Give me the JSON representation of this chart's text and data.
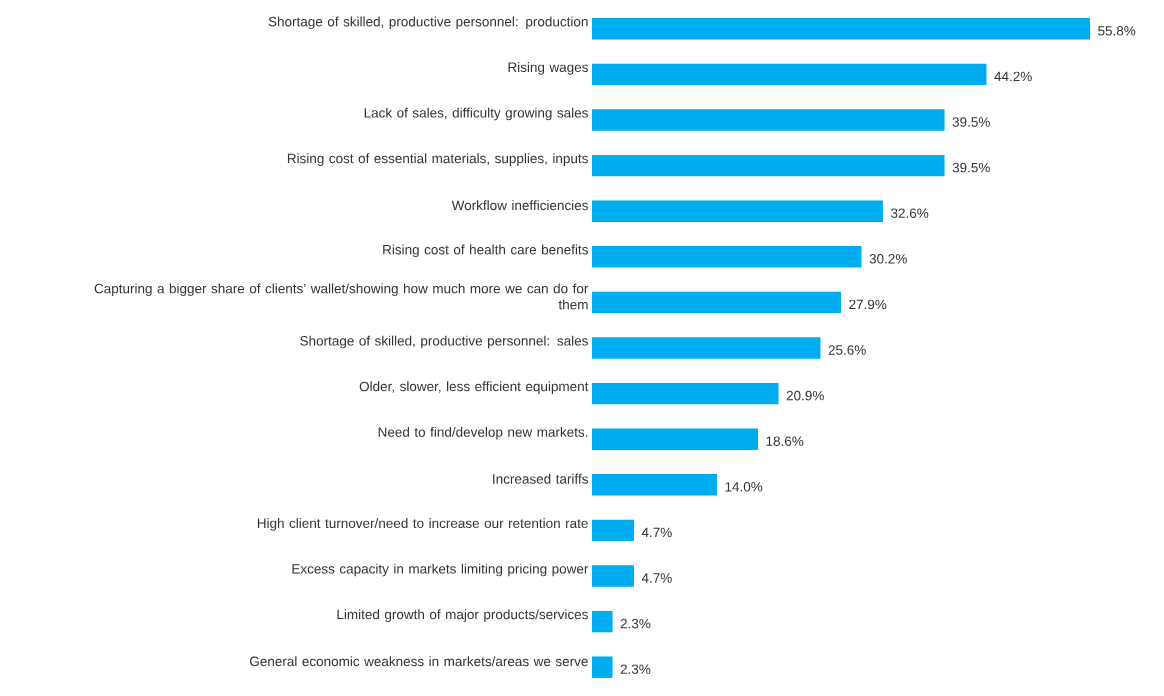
{
  "chart_data": {
    "type": "bar",
    "orientation": "horizontal",
    "color": "#00aeef",
    "categories": [
      "Shortage of skilled, productive personnel: production",
      "Rising wages",
      "Lack of sales, difficulty growing sales",
      "Rising cost of essential materials, supplies, inputs",
      "Workflow inefficiencies",
      "Rising cost of health care benefits",
      "Capturing a bigger share of clients’ wallet/showing how much more we can do for them",
      "Shortage of skilled, productive personnel: sales",
      "Older, slower, less efficient equipment",
      "Need to find/develop new markets.",
      "Increased tariffs",
      "High client turnover/need to increase our retention rate",
      "Excess capacity in markets limiting pricing power",
      "Limited growth of major products/services",
      "General economic weakness in markets/areas we serve"
    ],
    "values": [
      55.8,
      44.2,
      39.5,
      39.5,
      32.6,
      30.2,
      27.9,
      25.6,
      20.9,
      18.6,
      14.0,
      4.7,
      4.7,
      2.3,
      2.3
    ],
    "value_labels": [
      "55.8%",
      "44.2%",
      "39.5%",
      "39.5%",
      "32.6%",
      "30.2%",
      "27.9%",
      "25.6%",
      "20.9%",
      "18.6%",
      "14.0%",
      "4.7%",
      "4.7%",
      "2.3%",
      "2.3%"
    ]
  }
}
